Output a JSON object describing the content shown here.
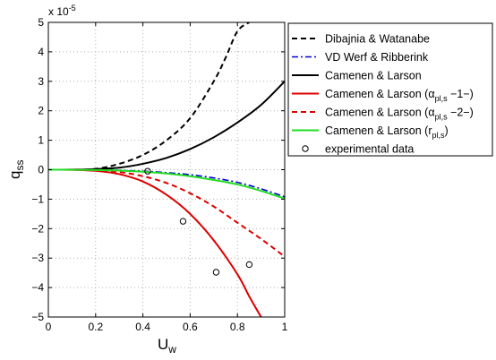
{
  "chart_data": {
    "type": "line",
    "x_label": {
      "main": "U",
      "sub": "w"
    },
    "y_label": {
      "main": "q",
      "sub": "ss"
    },
    "y_multiplier": "x 10",
    "y_exponent": "-5",
    "xlim": [
      0,
      1
    ],
    "ylim": [
      -5,
      5
    ],
    "x_ticks": [
      0,
      0.2,
      0.4,
      0.6,
      0.8,
      1
    ],
    "x_tick_labels": [
      "0",
      "0.2",
      "0.4",
      "0.6",
      "0.8",
      "1"
    ],
    "y_ticks": [
      -5,
      -4,
      -3,
      -2,
      -1,
      0,
      1,
      2,
      3,
      4,
      5
    ],
    "y_tick_labels": [
      "−5",
      "−4",
      "−3",
      "−2",
      "−1",
      "0",
      "1",
      "2",
      "3",
      "4",
      "5"
    ],
    "grid": true,
    "legend_position": "outside-right-top",
    "series": [
      {
        "name": "Dibajnia & Watanabe",
        "name_parts": [
          {
            "t": "Dibajnia & Watanabe"
          }
        ],
        "color": "#000000",
        "dash": "6,4",
        "width": 2,
        "x": [
          0,
          0.1,
          0.2,
          0.3,
          0.4,
          0.5,
          0.6,
          0.7,
          0.75,
          0.8,
          0.85
        ],
        "y": [
          0,
          0.001,
          0.03,
          0.2,
          0.5,
          1.0,
          1.75,
          3.0,
          3.8,
          4.7,
          5.0
        ]
      },
      {
        "name": "VD Werf & Ribberink",
        "name_parts": [
          {
            "t": "VD Werf & Ribberink"
          }
        ],
        "color": "#0000cc",
        "dash": "7,3,2,3",
        "width": 1.6,
        "x": [
          0,
          0.1,
          0.2,
          0.3,
          0.4,
          0.5,
          0.6,
          0.7,
          0.8,
          0.9,
          1.0
        ],
        "y": [
          0,
          -0.001,
          -0.006,
          -0.02,
          -0.05,
          -0.1,
          -0.17,
          -0.28,
          -0.43,
          -0.65,
          -0.92
        ]
      },
      {
        "name": "Camenen & Larson",
        "name_parts": [
          {
            "t": "Camenen & Larson"
          }
        ],
        "color": "#000000",
        "dash": "",
        "width": 2,
        "x": [
          0,
          0.1,
          0.2,
          0.3,
          0.4,
          0.5,
          0.6,
          0.7,
          0.8,
          0.9,
          1.0
        ],
        "y": [
          0,
          0.002,
          0.02,
          0.07,
          0.2,
          0.4,
          0.7,
          1.1,
          1.6,
          2.2,
          3.0
        ]
      },
      {
        "name": "Camenen & Larson (α pl,s −1−)",
        "name_parts": [
          {
            "t": "Camenen & Larson ("
          },
          {
            "t": "α"
          },
          {
            "t": "pl,s",
            "sub": true
          },
          {
            "t": " −1−)"
          }
        ],
        "color": "#dd0000",
        "dash": "",
        "width": 2,
        "x": [
          0,
          0.1,
          0.2,
          0.3,
          0.4,
          0.5,
          0.6,
          0.7,
          0.8,
          0.85,
          0.9
        ],
        "y": [
          0,
          -0.002,
          -0.04,
          -0.15,
          -0.4,
          -0.85,
          -1.5,
          -2.4,
          -3.55,
          -4.3,
          -5.0
        ]
      },
      {
        "name": "Camenen & Larson (α pl,s −2−)",
        "name_parts": [
          {
            "t": "Camenen & Larson ("
          },
          {
            "t": "α"
          },
          {
            "t": "pl,s",
            "sub": true
          },
          {
            "t": " −2−)"
          }
        ],
        "color": "#dd0000",
        "dash": "6,4",
        "width": 2,
        "x": [
          0,
          0.1,
          0.2,
          0.3,
          0.4,
          0.5,
          0.6,
          0.7,
          0.8,
          0.9,
          1.0
        ],
        "y": [
          0,
          -0.002,
          -0.02,
          -0.08,
          -0.22,
          -0.45,
          -0.8,
          -1.25,
          -1.8,
          -2.35,
          -2.95
        ]
      },
      {
        "name": "Camenen & Larson (r pl,s)",
        "name_parts": [
          {
            "t": "Camenen & Larson ("
          },
          {
            "t": "r"
          },
          {
            "t": "pl,s",
            "sub": true
          },
          {
            "t": ")"
          }
        ],
        "color": "#22dd22",
        "dash": "",
        "width": 2,
        "x": [
          0,
          0.1,
          0.2,
          0.3,
          0.4,
          0.5,
          0.6,
          0.7,
          0.8,
          0.9,
          1.0
        ],
        "y": [
          0,
          -0.002,
          -0.01,
          -0.03,
          -0.07,
          -0.13,
          -0.22,
          -0.35,
          -0.5,
          -0.72,
          -0.98
        ]
      }
    ],
    "scatter": {
      "name": "experimental data",
      "name_parts": [
        {
          "t": "experimental data"
        }
      ],
      "x": [
        0.42,
        0.57,
        0.71,
        0.85
      ],
      "y": [
        -0.05,
        -1.75,
        -3.48,
        -3.22
      ]
    }
  }
}
